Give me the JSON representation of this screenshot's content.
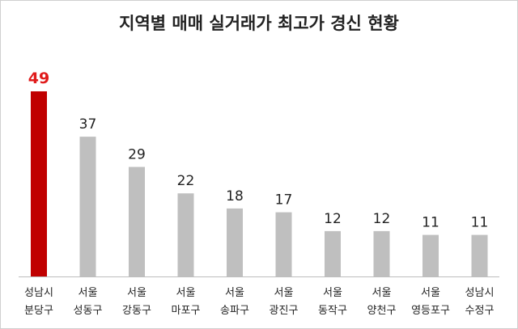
{
  "chart_data": {
    "type": "bar",
    "title": "지역별 매매 실거래가 최고가 경신 현황",
    "categories": [
      [
        "성남시",
        "분당구"
      ],
      [
        "서울",
        "성동구"
      ],
      [
        "서울",
        "강동구"
      ],
      [
        "서울",
        "마포구"
      ],
      [
        "서울",
        "송파구"
      ],
      [
        "서울",
        "광진구"
      ],
      [
        "서울",
        "동작구"
      ],
      [
        "서울",
        "양천구"
      ],
      [
        "서울",
        "영등포구"
      ],
      [
        "성남시",
        "수정구"
      ]
    ],
    "values": [
      49,
      37,
      29,
      22,
      18,
      17,
      12,
      12,
      11,
      11
    ],
    "highlight_index": 0,
    "colors": {
      "highlight": "#c00000",
      "normal": "#bfbfbf",
      "highlight_label": "#e01b1b",
      "label": "#222222"
    },
    "ylim": [
      0,
      49
    ],
    "grid": false,
    "xlabel": "",
    "ylabel": ""
  }
}
